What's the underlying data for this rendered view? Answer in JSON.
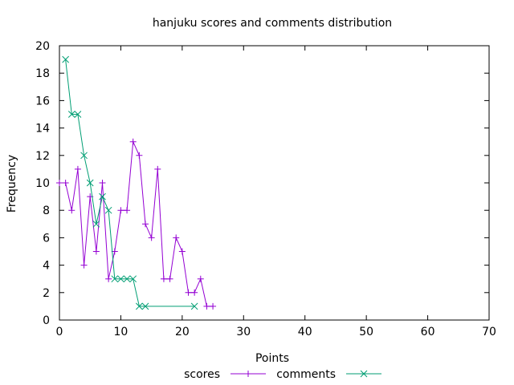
{
  "chart_data": {
    "type": "line",
    "title": "hanjuku scores and comments distribution",
    "xlabel": "Points",
    "ylabel": "Frequency",
    "xlim": [
      0,
      70
    ],
    "ylim": [
      0,
      20
    ],
    "xticks": [
      0,
      10,
      20,
      30,
      40,
      50,
      60,
      70
    ],
    "yticks": [
      0,
      2,
      4,
      6,
      8,
      10,
      12,
      14,
      16,
      18,
      20
    ],
    "grid": false,
    "legend": "bottom-center",
    "series": [
      {
        "name": "scores",
        "color": "#9400d3",
        "marker": "plus",
        "x": [
          0,
          1,
          2,
          3,
          4,
          5,
          6,
          7,
          8,
          9,
          10,
          11,
          12,
          13,
          14,
          15,
          16,
          17,
          18,
          19,
          20,
          21,
          22,
          23,
          24,
          25
        ],
        "y": [
          10,
          10,
          8,
          11,
          4,
          9,
          5,
          10,
          3,
          5,
          8,
          8,
          13,
          12,
          7,
          6,
          11,
          3,
          3,
          6,
          5,
          2,
          2,
          3,
          1,
          1
        ]
      },
      {
        "name": "comments",
        "color": "#009e73",
        "marker": "cross",
        "x": [
          1,
          2,
          3,
          4,
          5,
          6,
          7,
          8,
          9,
          10,
          11,
          12,
          13,
          14,
          22
        ],
        "y": [
          19,
          15,
          15,
          12,
          10,
          7,
          9,
          8,
          3,
          3,
          3,
          3,
          1,
          1,
          1
        ]
      }
    ]
  }
}
